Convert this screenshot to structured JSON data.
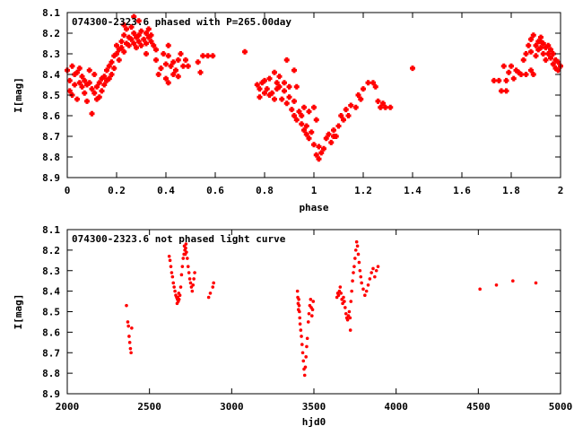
{
  "chart_data": [
    {
      "type": "scatter",
      "title": "074300-2323.6 phased with P=265.00day",
      "xlabel": "phase",
      "ylabel": "I[mag]",
      "xlim": [
        0,
        2
      ],
      "ylim": [
        8.9,
        8.1
      ],
      "y_inverted": true,
      "grid": false,
      "legend": "none",
      "marker": "plus",
      "color": "#ff0000",
      "x_ticks": [
        "0",
        "0.2",
        "0.4",
        "0.6",
        "0.8",
        "1",
        "1.2",
        "1.4",
        "1.6",
        "1.8",
        "2"
      ],
      "y_ticks": [
        "8.1",
        "8.2",
        "8.3",
        "8.4",
        "8.5",
        "8.6",
        "8.7",
        "8.8",
        "8.9"
      ],
      "points": [
        [
          0.0,
          8.38
        ],
        [
          0.01,
          8.43
        ],
        [
          0.01,
          8.48
        ],
        [
          0.02,
          8.36
        ],
        [
          0.02,
          8.5
        ],
        [
          0.03,
          8.4
        ],
        [
          0.03,
          8.45
        ],
        [
          0.04,
          8.52
        ],
        [
          0.04,
          8.39
        ],
        [
          0.05,
          8.37
        ],
        [
          0.05,
          8.44
        ],
        [
          0.06,
          8.46
        ],
        [
          0.06,
          8.41
        ],
        [
          0.07,
          8.49
        ],
        [
          0.07,
          8.43
        ],
        [
          0.08,
          8.53
        ],
        [
          0.08,
          8.45
        ],
        [
          0.09,
          8.38
        ],
        [
          0.09,
          8.44
        ],
        [
          0.1,
          8.59
        ],
        [
          0.1,
          8.47
        ],
        [
          0.11,
          8.4
        ],
        [
          0.11,
          8.49
        ],
        [
          0.12,
          8.52
        ],
        [
          0.12,
          8.46
        ],
        [
          0.13,
          8.51
        ],
        [
          0.13,
          8.44
        ],
        [
          0.14,
          8.42
        ],
        [
          0.14,
          8.48
        ],
        [
          0.15,
          8.41
        ],
        [
          0.15,
          8.45
        ],
        [
          0.16,
          8.43
        ],
        [
          0.16,
          8.38
        ],
        [
          0.17,
          8.42
        ],
        [
          0.17,
          8.36
        ],
        [
          0.18,
          8.34
        ],
        [
          0.18,
          8.4
        ],
        [
          0.19,
          8.31
        ],
        [
          0.19,
          8.37
        ],
        [
          0.2,
          8.3
        ],
        [
          0.2,
          8.26
        ],
        [
          0.21,
          8.33
        ],
        [
          0.21,
          8.28
        ],
        [
          0.22,
          8.27
        ],
        [
          0.22,
          8.24
        ],
        [
          0.23,
          8.29
        ],
        [
          0.23,
          8.21
        ],
        [
          0.24,
          8.25
        ],
        [
          0.24,
          8.18
        ],
        [
          0.25,
          8.26
        ],
        [
          0.25,
          8.22
        ],
        [
          0.26,
          8.17
        ],
        [
          0.26,
          8.23
        ],
        [
          0.27,
          8.2
        ],
        [
          0.27,
          8.25
        ],
        [
          0.28,
          8.22
        ],
        [
          0.28,
          8.27
        ],
        [
          0.29,
          8.21
        ],
        [
          0.29,
          8.24
        ],
        [
          0.3,
          8.26
        ],
        [
          0.3,
          8.19
        ],
        [
          0.31,
          8.23
        ],
        [
          0.32,
          8.2
        ],
        [
          0.32,
          8.25
        ],
        [
          0.33,
          8.18
        ],
        [
          0.33,
          8.22
        ],
        [
          0.34,
          8.21
        ],
        [
          0.34,
          8.24
        ],
        [
          0.35,
          8.26
        ],
        [
          0.36,
          8.33
        ],
        [
          0.37,
          8.4
        ],
        [
          0.38,
          8.37
        ],
        [
          0.39,
          8.3
        ],
        [
          0.4,
          8.35
        ],
        [
          0.4,
          8.42
        ],
        [
          0.41,
          8.31
        ],
        [
          0.41,
          8.44
        ],
        [
          0.42,
          8.36
        ],
        [
          0.43,
          8.34
        ],
        [
          0.43,
          8.4
        ],
        [
          0.44,
          8.38
        ],
        [
          0.45,
          8.33
        ],
        [
          0.45,
          8.41
        ],
        [
          0.46,
          8.3
        ],
        [
          0.47,
          8.36
        ],
        [
          0.48,
          8.33
        ],
        [
          0.49,
          8.36
        ],
        [
          0.53,
          8.34
        ],
        [
          0.54,
          8.39
        ],
        [
          0.55,
          8.31
        ],
        [
          0.57,
          8.31
        ],
        [
          0.59,
          8.31
        ],
        [
          0.72,
          8.29
        ],
        [
          0.77,
          8.45
        ],
        [
          0.78,
          8.47
        ],
        [
          0.78,
          8.51
        ],
        [
          0.79,
          8.44
        ],
        [
          0.8,
          8.49
        ],
        [
          0.8,
          8.43
        ],
        [
          0.81,
          8.47
        ],
        [
          0.82,
          8.42
        ],
        [
          0.82,
          8.5
        ],
        [
          0.83,
          8.49
        ],
        [
          0.84,
          8.39
        ],
        [
          0.84,
          8.52
        ],
        [
          0.85,
          8.44
        ],
        [
          0.86,
          8.46
        ],
        [
          0.86,
          8.41
        ],
        [
          0.87,
          8.52
        ],
        [
          0.88,
          8.48
        ],
        [
          0.88,
          8.44
        ],
        [
          0.89,
          8.54
        ],
        [
          0.9,
          8.46
        ],
        [
          0.9,
          8.51
        ],
        [
          0.91,
          8.57
        ],
        [
          0.92,
          8.53
        ],
        [
          0.92,
          8.6
        ],
        [
          0.93,
          8.46
        ],
        [
          0.93,
          8.62
        ],
        [
          0.94,
          8.58
        ],
        [
          0.95,
          8.64
        ],
        [
          0.95,
          8.6
        ],
        [
          0.96,
          8.67
        ],
        [
          0.97,
          8.65
        ],
        [
          0.97,
          8.69
        ],
        [
          0.98,
          8.71
        ],
        [
          0.99,
          8.68
        ],
        [
          1.0,
          8.74
        ],
        [
          1.01,
          8.79
        ],
        [
          1.02,
          8.75
        ],
        [
          1.02,
          8.81
        ],
        [
          1.03,
          8.78
        ],
        [
          1.04,
          8.76
        ],
        [
          1.05,
          8.71
        ],
        [
          1.06,
          8.69
        ],
        [
          1.07,
          8.73
        ],
        [
          1.08,
          8.7
        ],
        [
          1.08,
          8.67
        ],
        [
          1.09,
          8.7
        ],
        [
          1.1,
          8.65
        ],
        [
          1.11,
          8.6
        ],
        [
          1.12,
          8.62
        ],
        [
          1.13,
          8.57
        ],
        [
          1.14,
          8.6
        ],
        [
          1.15,
          8.55
        ],
        [
          1.17,
          8.56
        ],
        [
          1.18,
          8.5
        ],
        [
          1.19,
          8.52
        ],
        [
          1.2,
          8.47
        ],
        [
          1.22,
          8.44
        ],
        [
          1.24,
          8.44
        ],
        [
          1.25,
          8.46
        ],
        [
          1.26,
          8.53
        ],
        [
          1.27,
          8.56
        ],
        [
          1.28,
          8.54
        ],
        [
          1.29,
          8.56
        ],
        [
          1.31,
          8.56
        ],
        [
          1.4,
          8.37
        ],
        [
          0.96,
          8.56
        ],
        [
          0.98,
          8.58
        ],
        [
          1.0,
          8.56
        ],
        [
          1.01,
          8.62
        ],
        [
          0.27,
          8.12
        ],
        [
          0.23,
          8.16
        ],
        [
          0.29,
          8.14
        ],
        [
          0.36,
          8.28
        ],
        [
          0.41,
          8.26
        ],
        [
          0.32,
          8.3
        ],
        [
          0.89,
          8.33
        ],
        [
          0.92,
          8.38
        ],
        [
          0.85,
          8.47
        ],
        [
          1.73,
          8.43
        ],
        [
          1.75,
          8.43
        ],
        [
          1.76,
          8.48
        ],
        [
          1.77,
          8.36
        ],
        [
          1.78,
          8.43
        ],
        [
          1.79,
          8.39
        ],
        [
          1.8,
          8.36
        ],
        [
          1.81,
          8.42
        ],
        [
          1.82,
          8.38
        ],
        [
          1.83,
          8.39
        ],
        [
          1.84,
          8.4
        ],
        [
          1.85,
          8.33
        ],
        [
          1.86,
          8.3
        ],
        [
          1.87,
          8.26
        ],
        [
          1.88,
          8.23
        ],
        [
          1.88,
          8.29
        ],
        [
          1.89,
          8.21
        ],
        [
          1.9,
          8.26
        ],
        [
          1.9,
          8.31
        ],
        [
          1.91,
          8.24
        ],
        [
          1.91,
          8.28
        ],
        [
          1.92,
          8.22
        ],
        [
          1.92,
          8.27
        ],
        [
          1.93,
          8.25
        ],
        [
          1.93,
          8.3
        ],
        [
          1.94,
          8.27
        ],
        [
          1.94,
          8.33
        ],
        [
          1.95,
          8.3
        ],
        [
          1.95,
          8.26
        ],
        [
          1.96,
          8.32
        ],
        [
          1.96,
          8.28
        ],
        [
          1.97,
          8.35
        ],
        [
          1.97,
          8.3
        ],
        [
          1.98,
          8.33
        ],
        [
          1.98,
          8.37
        ],
        [
          1.99,
          8.34
        ],
        [
          1.99,
          8.38
        ],
        [
          2.0,
          8.36
        ],
        [
          1.92,
          8.24
        ],
        [
          1.89,
          8.4
        ],
        [
          1.86,
          8.4
        ],
        [
          1.88,
          8.38
        ],
        [
          1.78,
          8.48
        ]
      ]
    },
    {
      "type": "scatter",
      "title": "074300-2323.6 not phased light curve",
      "xlabel": "hjd0",
      "ylabel": "I[mag]",
      "xlim": [
        2000,
        5000
      ],
      "ylim": [
        8.9,
        8.1
      ],
      "y_inverted": true,
      "grid": false,
      "legend": "none",
      "marker": "dot",
      "color": "#ff0000",
      "x_ticks": [
        "2000",
        "2500",
        "3000",
        "3500",
        "4000",
        "4500",
        "5000"
      ],
      "y_ticks": [
        "8.1",
        "8.2",
        "8.3",
        "8.4",
        "8.5",
        "8.6",
        "8.7",
        "8.8",
        "8.9"
      ],
      "points": [
        [
          2360,
          8.47
        ],
        [
          2368,
          8.55
        ],
        [
          2372,
          8.57
        ],
        [
          2376,
          8.62
        ],
        [
          2380,
          8.65
        ],
        [
          2384,
          8.68
        ],
        [
          2388,
          8.7
        ],
        [
          2392,
          8.58
        ],
        [
          2620,
          8.23
        ],
        [
          2625,
          8.25
        ],
        [
          2630,
          8.28
        ],
        [
          2635,
          8.31
        ],
        [
          2640,
          8.33
        ],
        [
          2645,
          8.36
        ],
        [
          2650,
          8.38
        ],
        [
          2655,
          8.4
        ],
        [
          2660,
          8.42
        ],
        [
          2665,
          8.43
        ],
        [
          2670,
          8.44
        ],
        [
          2675,
          8.45
        ],
        [
          2680,
          8.44
        ],
        [
          2685,
          8.42
        ],
        [
          2690,
          8.38
        ],
        [
          2695,
          8.32
        ],
        [
          2700,
          8.28
        ],
        [
          2705,
          8.24
        ],
        [
          2710,
          8.22
        ],
        [
          2715,
          8.2
        ],
        [
          2720,
          8.19
        ],
        [
          2725,
          8.21
        ],
        [
          2730,
          8.24
        ],
        [
          2735,
          8.28
        ],
        [
          2740,
          8.31
        ],
        [
          2745,
          8.34
        ],
        [
          2750,
          8.36
        ],
        [
          2755,
          8.38
        ],
        [
          2760,
          8.4
        ],
        [
          2765,
          8.37
        ],
        [
          2770,
          8.34
        ],
        [
          2775,
          8.31
        ],
        [
          2668,
          8.46
        ],
        [
          2672,
          8.43
        ],
        [
          2678,
          8.41
        ],
        [
          2712,
          8.18
        ],
        [
          2718,
          8.22
        ],
        [
          2722,
          8.17
        ],
        [
          2860,
          8.43
        ],
        [
          2870,
          8.41
        ],
        [
          2885,
          8.38
        ],
        [
          2890,
          8.36
        ],
        [
          3400,
          8.4
        ],
        [
          3402,
          8.43
        ],
        [
          3404,
          8.46
        ],
        [
          3406,
          8.49
        ],
        [
          3408,
          8.44
        ],
        [
          3410,
          8.47
        ],
        [
          3412,
          8.5
        ],
        [
          3414,
          8.53
        ],
        [
          3416,
          8.56
        ],
        [
          3420,
          8.59
        ],
        [
          3424,
          8.62
        ],
        [
          3428,
          8.66
        ],
        [
          3432,
          8.7
        ],
        [
          3436,
          8.74
        ],
        [
          3440,
          8.78
        ],
        [
          3444,
          8.81
        ],
        [
          3448,
          8.77
        ],
        [
          3452,
          8.72
        ],
        [
          3456,
          8.67
        ],
        [
          3460,
          8.63
        ],
        [
          3466,
          8.55
        ],
        [
          3470,
          8.51
        ],
        [
          3475,
          8.47
        ],
        [
          3480,
          8.44
        ],
        [
          3484,
          8.48
        ],
        [
          3488,
          8.52
        ],
        [
          3492,
          8.49
        ],
        [
          3496,
          8.45
        ],
        [
          3640,
          8.43
        ],
        [
          3645,
          8.41
        ],
        [
          3650,
          8.42
        ],
        [
          3655,
          8.4
        ],
        [
          3660,
          8.38
        ],
        [
          3665,
          8.41
        ],
        [
          3670,
          8.44
        ],
        [
          3675,
          8.46
        ],
        [
          3680,
          8.43
        ],
        [
          3685,
          8.45
        ],
        [
          3690,
          8.48
        ],
        [
          3695,
          8.51
        ],
        [
          3700,
          8.53
        ],
        [
          3705,
          8.54
        ],
        [
          3710,
          8.52
        ],
        [
          3715,
          8.5
        ],
        [
          3720,
          8.53
        ],
        [
          3722,
          8.59
        ],
        [
          3725,
          8.45
        ],
        [
          3730,
          8.4
        ],
        [
          3735,
          8.35
        ],
        [
          3740,
          8.31
        ],
        [
          3745,
          8.28
        ],
        [
          3750,
          8.24
        ],
        [
          3755,
          8.2
        ],
        [
          3760,
          8.16
        ],
        [
          3765,
          8.18
        ],
        [
          3770,
          8.22
        ],
        [
          3775,
          8.26
        ],
        [
          3780,
          8.3
        ],
        [
          3785,
          8.33
        ],
        [
          3790,
          8.36
        ],
        [
          3800,
          8.39
        ],
        [
          3810,
          8.42
        ],
        [
          3820,
          8.4
        ],
        [
          3830,
          8.37
        ],
        [
          3840,
          8.34
        ],
        [
          3850,
          8.31
        ],
        [
          3860,
          8.29
        ],
        [
          3870,
          8.33
        ],
        [
          3880,
          8.3
        ],
        [
          3890,
          8.28
        ],
        [
          4510,
          8.39
        ],
        [
          4610,
          8.37
        ],
        [
          4710,
          8.35
        ],
        [
          4850,
          8.36
        ]
      ]
    }
  ]
}
